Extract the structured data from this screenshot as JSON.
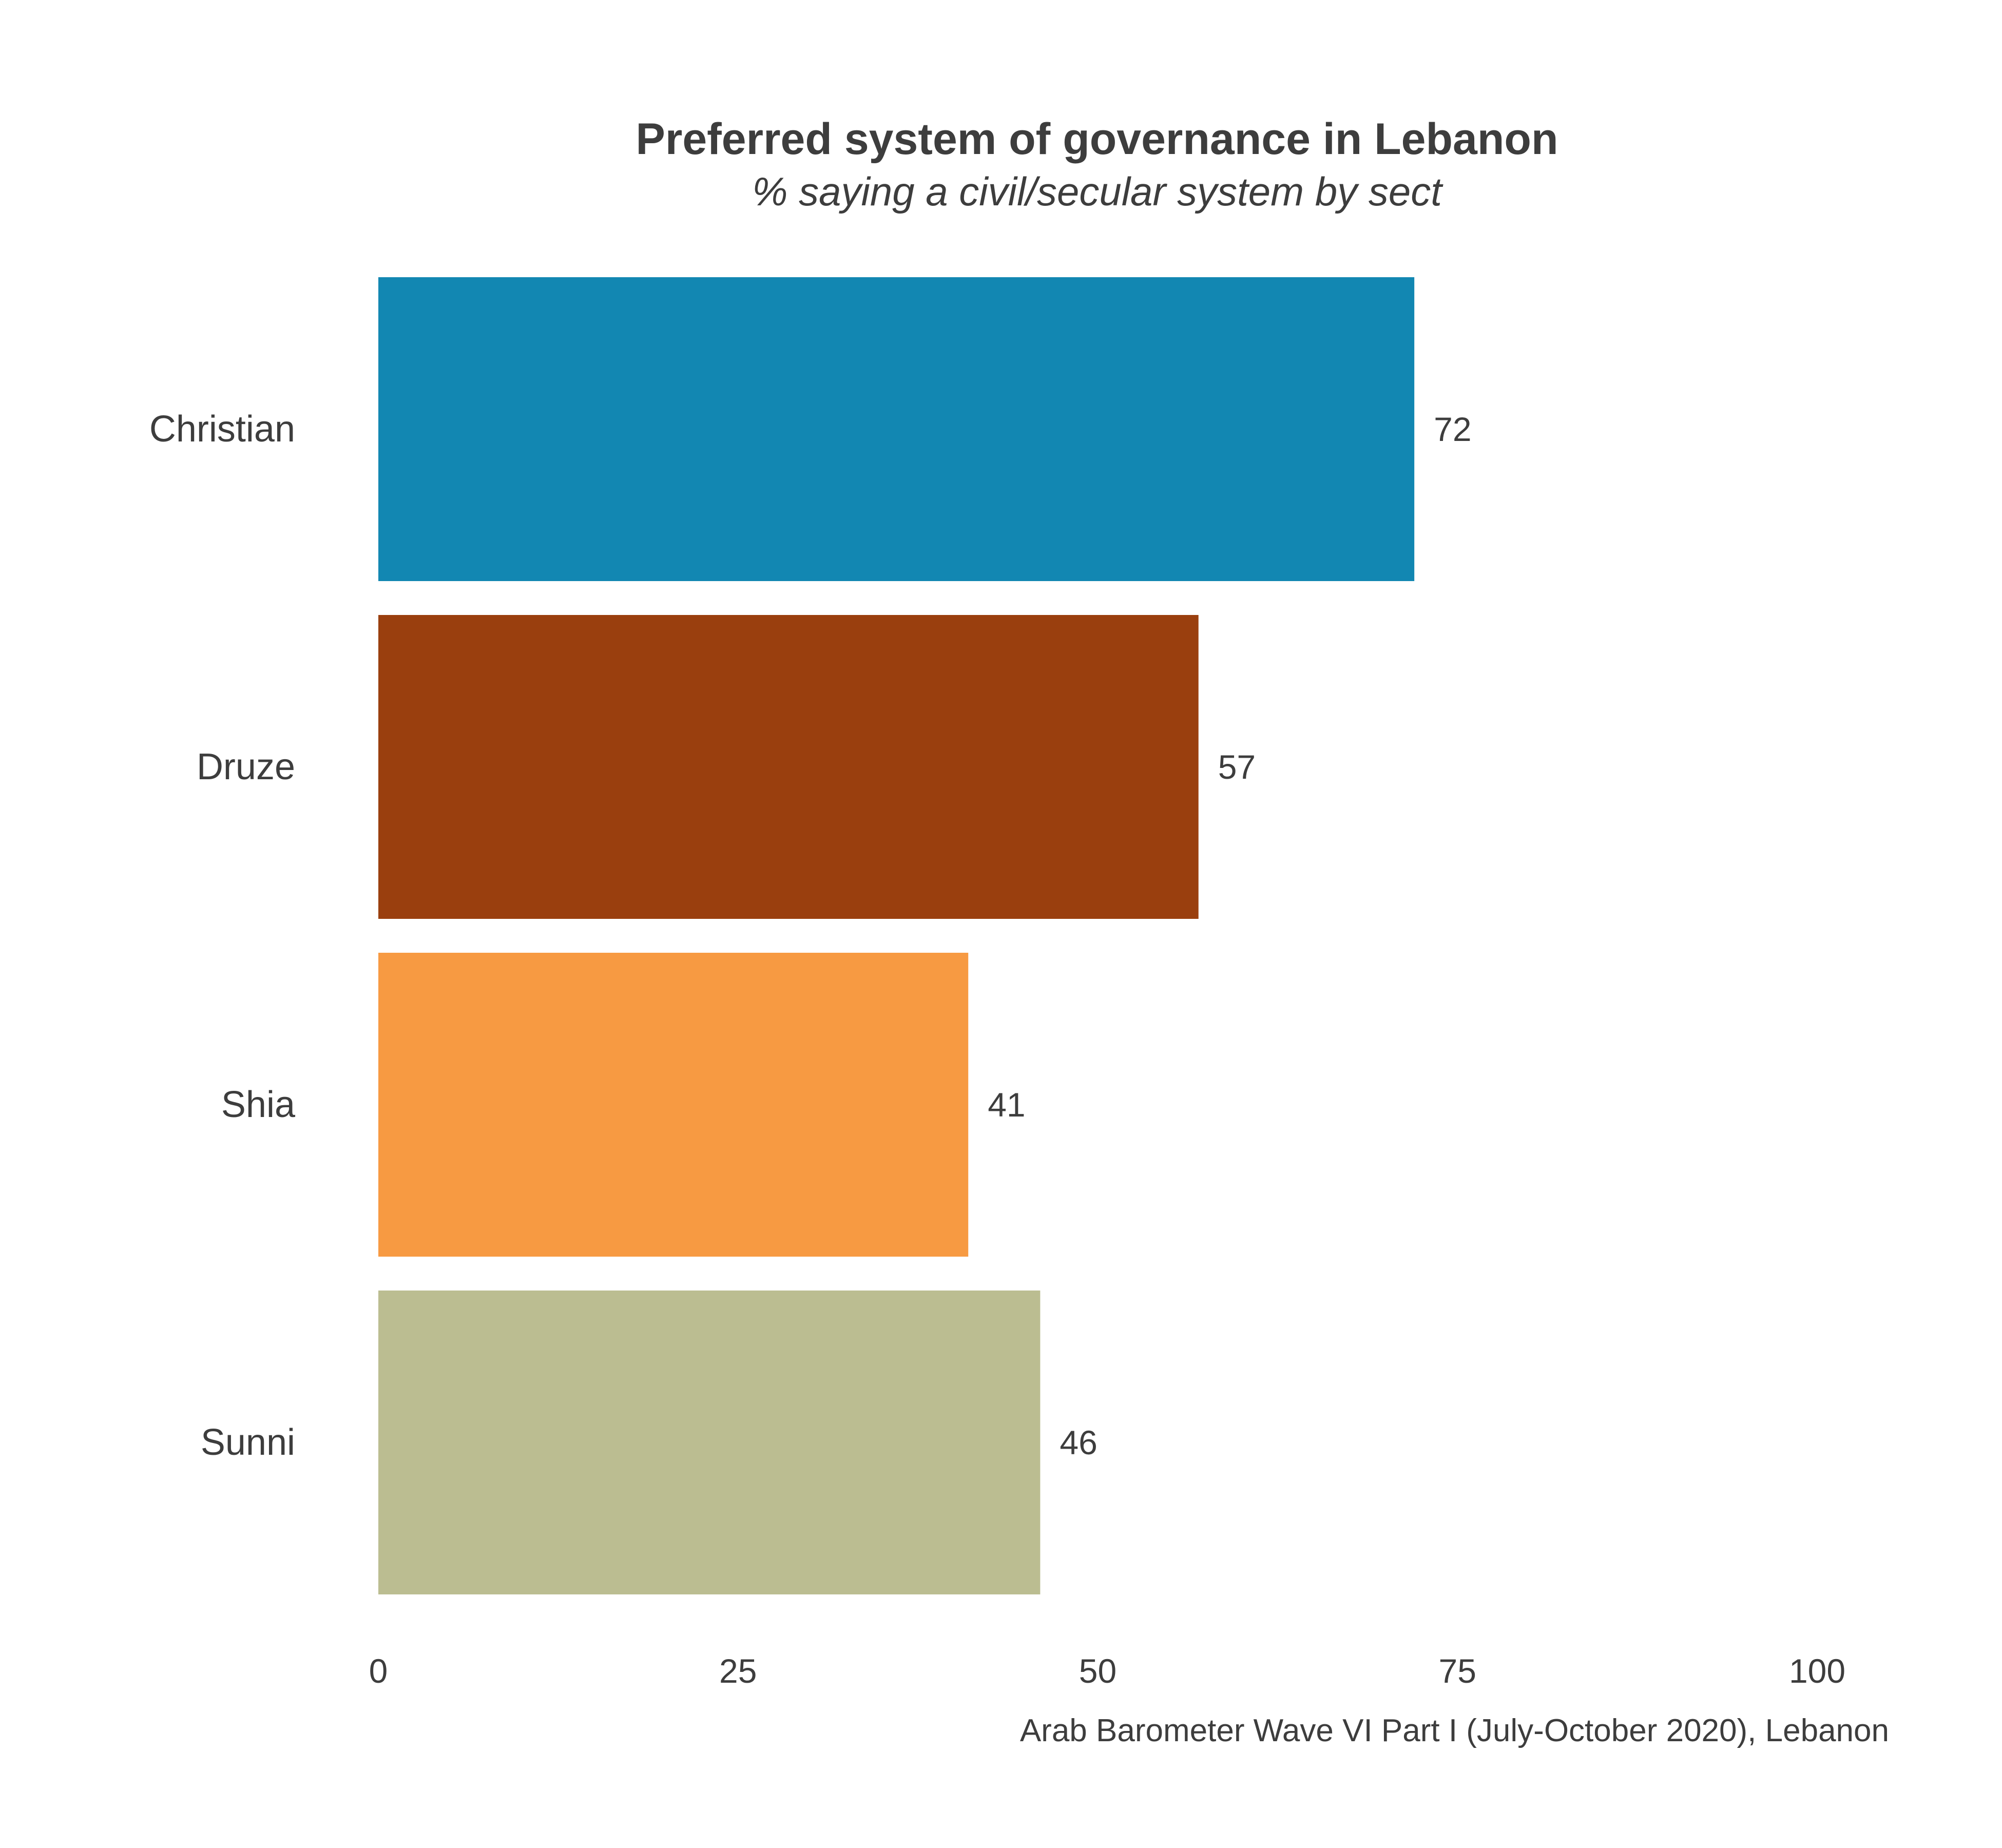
{
  "chart_data": {
    "type": "bar",
    "orientation": "horizontal",
    "title": "Preferred system of governance in Lebanon",
    "subtitle": "% saying a civil/secular system by sect",
    "categories": [
      "Christian",
      "Druze",
      "Shia",
      "Sunni"
    ],
    "values": [
      72,
      57,
      41,
      46
    ],
    "value_labels": [
      "72",
      "57",
      "41",
      "46"
    ],
    "colors": [
      "#1287b2",
      "#9a3f0e",
      "#f79a42",
      "#bbbd91"
    ],
    "xlim": [
      0,
      100
    ],
    "xticks": [
      0,
      25,
      50,
      75,
      100
    ],
    "xtick_labels": [
      "0",
      "25",
      "50",
      "75",
      "100"
    ],
    "xlabel": "",
    "ylabel": "",
    "grid": false,
    "caption": "Arab Barometer Wave VI Part I (July-October 2020), Lebanon"
  }
}
